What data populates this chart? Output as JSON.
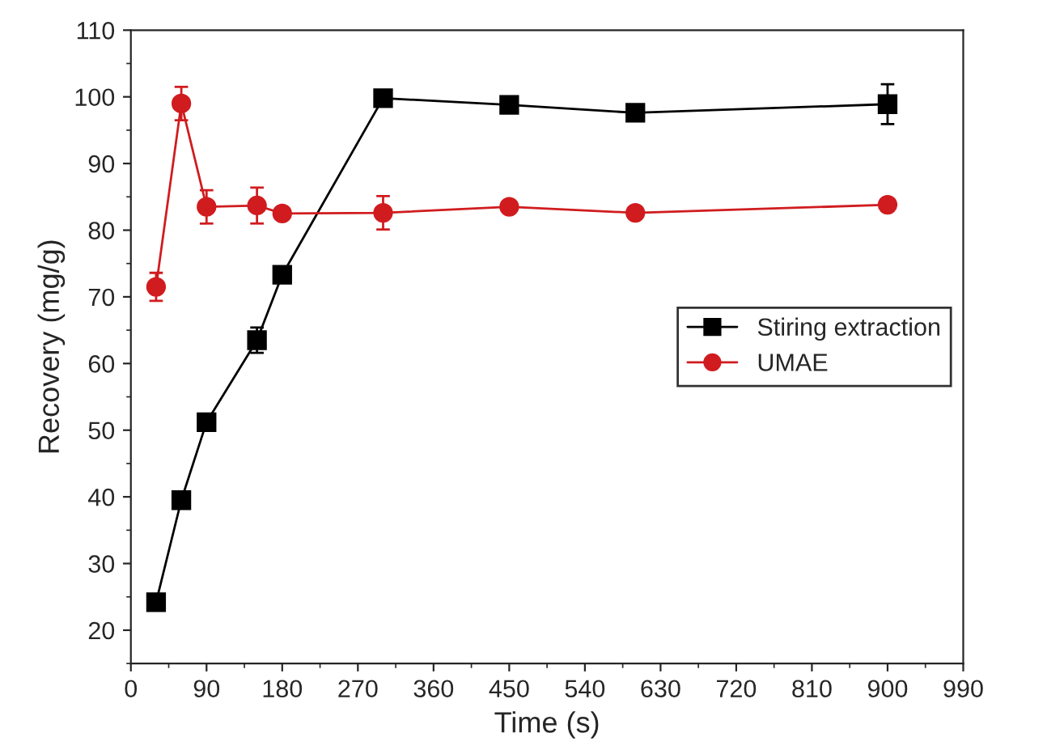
{
  "chart_data": {
    "type": "line",
    "xlabel": "Time (s)",
    "ylabel": "Recovery (mg/g)",
    "x": [
      30,
      60,
      90,
      150,
      180,
      300,
      450,
      600,
      900
    ],
    "series": [
      {
        "name": "Stiring extraction",
        "color": "#000000",
        "marker": "square",
        "values": [
          24.2,
          39.5,
          51.2,
          63.5,
          73.3,
          99.8,
          98.8,
          97.6,
          98.9
        ],
        "errors": [
          null,
          0.8,
          null,
          1.9,
          null,
          null,
          null,
          null,
          3.0
        ]
      },
      {
        "name": "UMAE",
        "color": "#d01c1f",
        "marker": "circle",
        "values": [
          71.5,
          99.0,
          83.5,
          83.7,
          82.5,
          82.6,
          83.5,
          82.6,
          83.8
        ],
        "errors": [
          2.1,
          2.5,
          2.5,
          2.7,
          null,
          2.5,
          0.8,
          0.8,
          null
        ]
      }
    ],
    "xlim": [
      0,
      990
    ],
    "xticks": [
      0,
      90,
      180,
      270,
      360,
      450,
      540,
      630,
      720,
      810,
      900,
      990
    ],
    "ylim": [
      15,
      110
    ],
    "yticks": [
      20,
      30,
      40,
      50,
      60,
      70,
      80,
      90,
      100,
      110
    ],
    "legend": "center right",
    "grid": false,
    "line_style": "solid"
  }
}
